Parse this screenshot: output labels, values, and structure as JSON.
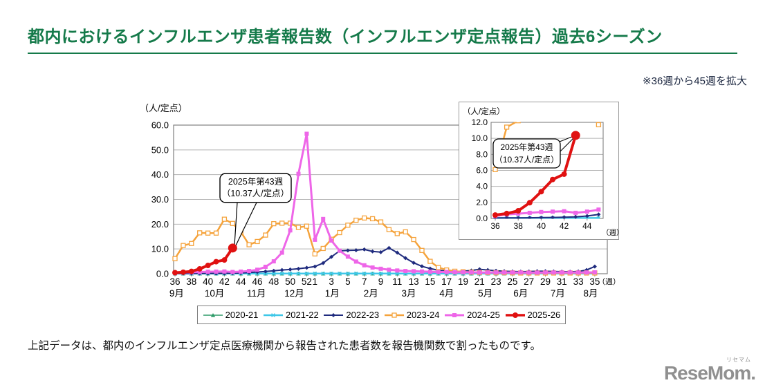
{
  "page": {
    "title": "都内におけるインフルエンザ患者報告数（インフルエンザ定点報告）過去6シーズン",
    "note": "※36週から45週を拡大",
    "caption": "上記データは、都内のインフルエンザ定点医療機関から報告された患者数を報告機関数で割ったものです。",
    "logo": {
      "text": "ReseMom.",
      "ruby": "リセマム"
    },
    "accent_green": "#157A4A"
  },
  "chart_data": {
    "type": "line",
    "title": "都内におけるインフルエンザ患者報告数（インフルエンザ定点報告）過去6シーズン",
    "unit_label": "（人/定点）",
    "week_label": "（週）",
    "x_description": "weeks 36-52 of first year then weeks 1-35 of next year, 52 weekly points per season",
    "ylim": [
      0,
      60
    ],
    "ytick_labels": [
      "0.0",
      "10.0",
      "20.0",
      "30.0",
      "40.0",
      "50.0",
      "60.0"
    ],
    "xtick_labels": [
      "36",
      "38",
      "40",
      "42",
      "44",
      "46",
      "48",
      "50",
      "52",
      "1",
      "3",
      "5",
      "7",
      "9",
      "11",
      "13",
      "15",
      "17",
      "19",
      "21",
      "23",
      "25",
      "27",
      "29",
      "31",
      "33",
      "35"
    ],
    "xtick_index": [
      0,
      2,
      4,
      6,
      8,
      10,
      12,
      14,
      16,
      17,
      19,
      21,
      23,
      25,
      27,
      29,
      31,
      33,
      35,
      37,
      39,
      41,
      43,
      45,
      47,
      49,
      51
    ],
    "month_labels": [
      "9月",
      "10月",
      "11月",
      "12月",
      "1月",
      "2月",
      "3月",
      "4月",
      "5月",
      "6月",
      "7月",
      "8月"
    ],
    "month_index": [
      0.2,
      4.8,
      9.9,
      14.5,
      19.1,
      23.8,
      28.4,
      33.0,
      37.7,
      42.0,
      46.5,
      50.5
    ],
    "grid": true,
    "legend_position": "bottom",
    "series": [
      {
        "name": "2020-21",
        "color": "#2E9B68",
        "marker": "triangle",
        "line_width": 1.5,
        "values": [
          0.02,
          0.02,
          0.02,
          0.02,
          0.02,
          0.02,
          0.02,
          0.02,
          0.02,
          0.02,
          0.02,
          0.02,
          0.02,
          0.02,
          0.02,
          0.02,
          0.02,
          0.02,
          0.02,
          0.02,
          0.02,
          0.02,
          0.02,
          0.02,
          0.02,
          0.02,
          0.02,
          0.02,
          0.02,
          0.02,
          0.02,
          0.02,
          0.02,
          0.02,
          0.02,
          0.02,
          0.02,
          0.02,
          0.02,
          0.02,
          0.02,
          0.02,
          0.02,
          0.02,
          0.02,
          0.02,
          0.02,
          0.02,
          0.02,
          0.02,
          0.02,
          0.02
        ]
      },
      {
        "name": "2021-22",
        "color": "#3EC7E8",
        "marker": "x",
        "line_width": 2.5,
        "values": [
          0.05,
          0.05,
          0.05,
          0.05,
          0.05,
          0.05,
          0.05,
          0.05,
          0.05,
          0.05,
          0.05,
          0.05,
          0.05,
          0.05,
          0.05,
          0.05,
          0.05,
          0.05,
          0.05,
          0.05,
          0.05,
          0.05,
          0.05,
          0.05,
          0.05,
          0.05,
          0.05,
          0.05,
          0.05,
          0.05,
          0.05,
          0.05,
          0.05,
          0.05,
          0.05,
          0.05,
          0.05,
          0.05,
          0.05,
          0.05,
          0.05,
          0.05,
          0.05,
          0.05,
          0.05,
          0.05,
          0.05,
          0.05,
          0.05,
          0.05,
          0.05,
          0.05
        ]
      },
      {
        "name": "2022-23",
        "color": "#1F2B7E",
        "marker": "diamond",
        "line_width": 2,
        "values": [
          0.05,
          0.06,
          0.07,
          0.08,
          0.1,
          0.12,
          0.15,
          0.2,
          0.3,
          0.5,
          0.7,
          0.9,
          1.2,
          1.5,
          1.7,
          2.0,
          2.4,
          2.9,
          4.3,
          6.8,
          9.2,
          9.4,
          9.5,
          9.8,
          9.0,
          8.7,
          10.4,
          8.5,
          6.3,
          4.4,
          3.0,
          2.1,
          1.4,
          1.1,
          0.9,
          1.0,
          1.3,
          1.8,
          1.5,
          1.2,
          1.0,
          0.9,
          0.85,
          0.9,
          1.0,
          1.0,
          0.9,
          0.85,
          0.8,
          0.9,
          1.5,
          2.9
        ]
      },
      {
        "name": "2023-24",
        "color": "#F5A33C",
        "marker": "square-open",
        "line_width": 2.5,
        "values": [
          6.1,
          11.4,
          12.2,
          16.5,
          16.4,
          16.4,
          22.0,
          20.3,
          16.9,
          11.7,
          13.0,
          15.6,
          20.2,
          20.4,
          20.4,
          18.7,
          19.2,
          8.0,
          10.2,
          13.9,
          16.6,
          19.6,
          21.6,
          22.5,
          22.2,
          20.9,
          17.8,
          16.2,
          16.9,
          13.8,
          9.4,
          5.0,
          2.5,
          1.5,
          1.0,
          0.8,
          0.6,
          0.5,
          0.45,
          0.4,
          0.4,
          0.35,
          0.3,
          0.3,
          0.3,
          0.3,
          0.3,
          0.3,
          0.3,
          0.3,
          0.3,
          0.3
        ]
      },
      {
        "name": "2024-25",
        "color": "#EE66E8",
        "marker": "square",
        "line_width": 3,
        "values": [
          0.3,
          0.5,
          0.6,
          0.7,
          0.8,
          0.85,
          0.9,
          0.7,
          0.85,
          1.1,
          1.6,
          2.8,
          5.0,
          8.5,
          17.5,
          40.3,
          56.5,
          13.7,
          22.1,
          13.4,
          9.3,
          6.9,
          4.9,
          3.4,
          2.5,
          2.0,
          1.6,
          1.3,
          1.1,
          1.0,
          0.9,
          0.8,
          0.7,
          0.7,
          0.6,
          0.6,
          0.55,
          0.5,
          0.5,
          0.5,
          0.5,
          0.5,
          0.5,
          0.45,
          0.45,
          0.5,
          0.5,
          0.5,
          0.5,
          0.5,
          0.5,
          0.55
        ]
      },
      {
        "name": "2025-26",
        "color": "#E01111",
        "marker": "circle",
        "line_width": 4,
        "values": [
          0.42,
          0.61,
          0.95,
          1.96,
          3.34,
          4.86,
          5.53,
          10.37
        ]
      }
    ],
    "annotation": {
      "line1": "2025年第43週",
      "line2": "（10.37人/定点）",
      "series": "2025-26",
      "week": "43",
      "value": 10.37
    },
    "inset": {
      "note": "※36週から45週を拡大",
      "weeks_shown": 10,
      "ylim": [
        0,
        12
      ],
      "ytick_labels": [
        "0.0",
        "2.0",
        "4.0",
        "6.0",
        "8.0",
        "10.0",
        "12.0"
      ],
      "xtick_labels": [
        "36",
        "38",
        "40",
        "42",
        "44"
      ],
      "xtick_index": [
        0,
        2,
        4,
        6,
        8
      ],
      "unit_label": "（人/定点）",
      "week_label": "（週）"
    }
  }
}
